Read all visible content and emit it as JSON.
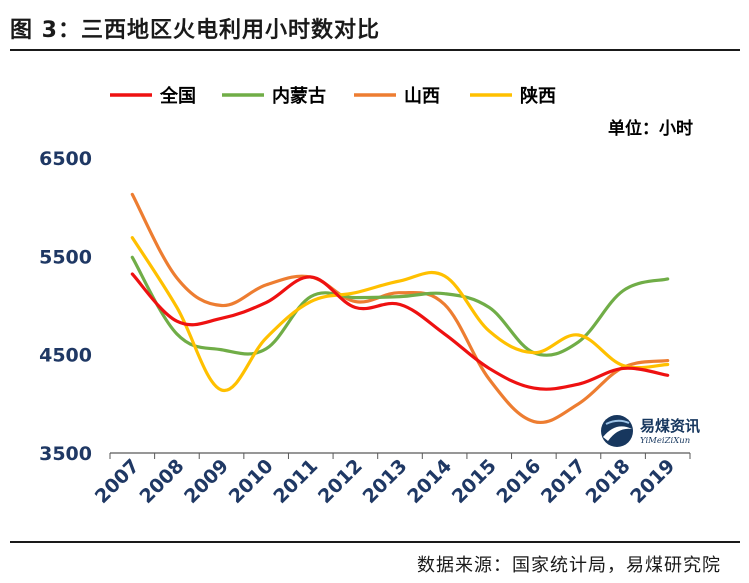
{
  "header": {
    "title": "图 3：三西地区火电利用小时数对比"
  },
  "footer": {
    "source": "数据来源：国家统计局，易煤研究院"
  },
  "unit_label": "单位：小时",
  "logo": {
    "name": "易煤资讯",
    "subtitle": "YiMeiZiXun",
    "icon": "globe-swirl-logo"
  },
  "colors": {
    "全国": "#ee1111",
    "内蒙古": "#70ad47",
    "山西": "#ed7d31",
    "陕西": "#ffc000",
    "axis": "#1f3864"
  },
  "chart_data": {
    "type": "line",
    "title": "",
    "xlabel": "",
    "ylabel": "",
    "unit": "单位：小时",
    "categories": [
      "2007",
      "2008",
      "2009",
      "2010",
      "2011",
      "2012",
      "2013",
      "2014",
      "2015",
      "2016",
      "2017",
      "2018",
      "2019"
    ],
    "ylim": [
      3500,
      6500
    ],
    "yticks": [
      3500,
      4500,
      5500,
      6500
    ],
    "legend_position": "top",
    "grid": false,
    "smooth": true,
    "series": [
      {
        "name": "全国",
        "color": "#ee1111",
        "values": [
          5320,
          4840,
          4870,
          5030,
          5290,
          4980,
          5010,
          4710,
          4360,
          4160,
          4200,
          4360,
          4290
        ]
      },
      {
        "name": "内蒙古",
        "color": "#70ad47",
        "values": [
          5490,
          4710,
          4550,
          4560,
          5090,
          5080,
          5090,
          5120,
          4980,
          4520,
          4630,
          5150,
          5270
        ]
      },
      {
        "name": "山西",
        "color": "#ed7d31",
        "values": [
          6130,
          5280,
          5000,
          5210,
          5290,
          5040,
          5130,
          5010,
          4250,
          3820,
          4000,
          4370,
          4440
        ]
      },
      {
        "name": "陕西",
        "color": "#ffc000",
        "values": [
          5690,
          4980,
          4140,
          4670,
          5040,
          5130,
          5250,
          5300,
          4740,
          4520,
          4700,
          4390,
          4400
        ]
      }
    ]
  }
}
